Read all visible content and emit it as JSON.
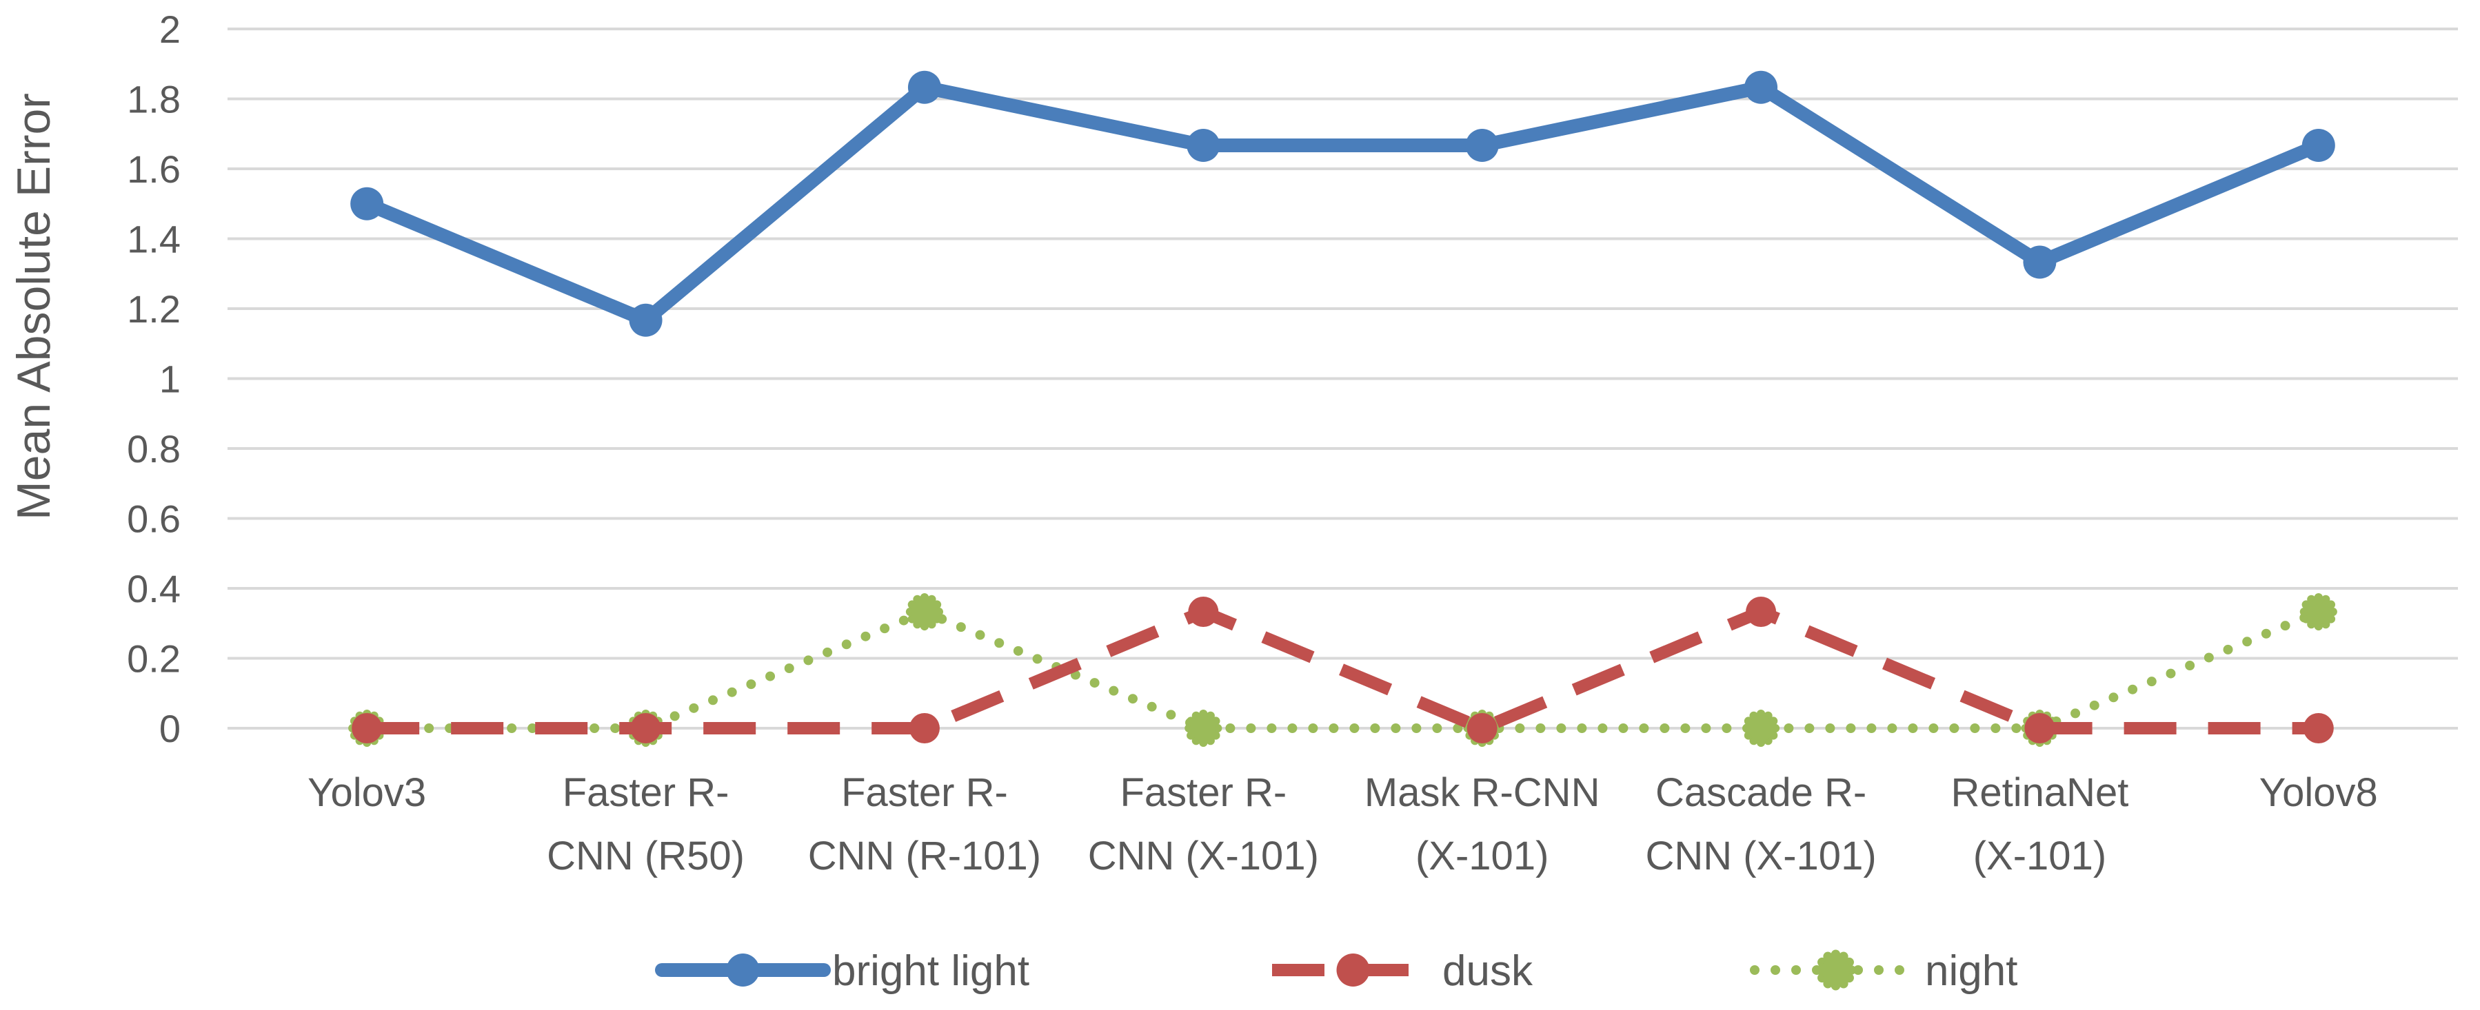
{
  "chart_data": {
    "type": "line",
    "title": "",
    "xlabel": "",
    "ylabel": "Mean Absolute Error",
    "ylim": [
      0,
      2
    ],
    "yticks": [
      "0",
      "0.2",
      "0.4",
      "0.6",
      "0.8",
      "1",
      "1.2",
      "1.4",
      "1.6",
      "1.8",
      "2"
    ],
    "grid": true,
    "legend_position": "bottom",
    "categories": [
      [
        "Yolov3"
      ],
      [
        "Faster R-",
        "CNN (R50)"
      ],
      [
        "Faster R-",
        "CNN (R-101)"
      ],
      [
        "Faster R-",
        "CNN (X-101)"
      ],
      [
        "Mask R-CNN",
        "(X-101)"
      ],
      [
        "Cascade R-",
        "CNN (X-101)"
      ],
      [
        "RetinaNet",
        "(X-101)"
      ],
      [
        "Yolov8"
      ]
    ],
    "series": [
      {
        "name": "bright light",
        "color": "#4a7ebb",
        "style": "solid",
        "values": [
          1.5,
          1.167,
          1.833,
          1.667,
          1.667,
          1.833,
          1.333,
          1.667
        ]
      },
      {
        "name": "dusk",
        "color": "#c0504d",
        "style": "dashed",
        "values": [
          0,
          0,
          0,
          0.333,
          0,
          0.333,
          0,
          0
        ]
      },
      {
        "name": "night",
        "color": "#9bbb59",
        "style": "dotted",
        "values": [
          0,
          0,
          0.333,
          0,
          0,
          0,
          0,
          0.333
        ]
      }
    ]
  }
}
